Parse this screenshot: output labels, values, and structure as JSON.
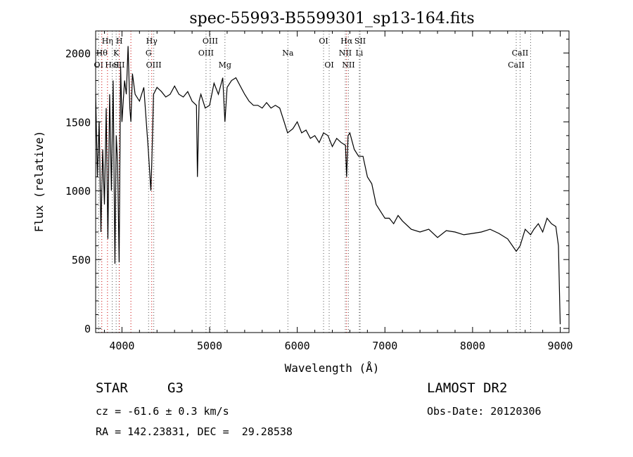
{
  "chart_data": {
    "type": "line",
    "title": "spec-55993-B5599301_sp13-164.fits",
    "xlabel": "Wavelength (Å)",
    "ylabel": "Flux (relative)",
    "xlim": [
      3700,
      9100
    ],
    "ylim": [
      -30,
      2160
    ],
    "xticks": [
      4000,
      5000,
      6000,
      7000,
      8000,
      9000
    ],
    "yticks": [
      0,
      500,
      1000,
      1500,
      2000
    ],
    "grid": false,
    "series": [
      {
        "x": [
          3700,
          3720,
          3740,
          3760,
          3780,
          3800,
          3820,
          3840,
          3860,
          3880,
          3900,
          3920,
          3935,
          3950,
          3968,
          3985,
          4000,
          4030,
          4050,
          4070,
          4090,
          4102,
          4120,
          4150,
          4200,
          4250,
          4300,
          4330,
          4340,
          4360,
          4400,
          4450,
          4500,
          4550,
          4600,
          4650,
          4700,
          4750,
          4800,
          4850,
          4861,
          4880,
          4900,
          4950,
          5000,
          5050,
          5100,
          5150,
          5175,
          5200,
          5250,
          5300,
          5350,
          5400,
          5450,
          5500,
          5550,
          5600,
          5650,
          5700,
          5750,
          5800,
          5850,
          5890,
          5950,
          6000,
          6050,
          6100,
          6150,
          6200,
          6250,
          6300,
          6350,
          6400,
          6450,
          6500,
          6550,
          6563,
          6580,
          6600,
          6650,
          6700,
          6750,
          6800,
          6850,
          6900,
          6950,
          7000,
          7050,
          7100,
          7150,
          7200,
          7300,
          7400,
          7500,
          7600,
          7700,
          7800,
          7900,
          8000,
          8100,
          8200,
          8300,
          8400,
          8498,
          8542,
          8600,
          8662,
          8700,
          8750,
          8800,
          8850,
          8900,
          8950,
          8980,
          9000
        ],
        "values": [
          1700,
          1100,
          1500,
          700,
          1300,
          900,
          1600,
          650,
          1700,
          1000,
          1800,
          470,
          1400,
          1200,
          480,
          1900,
          1500,
          1800,
          1700,
          2050,
          1600,
          1500,
          1850,
          1700,
          1650,
          1750,
          1300,
          1000,
          1200,
          1700,
          1750,
          1720,
          1680,
          1700,
          1760,
          1700,
          1680,
          1720,
          1650,
          1620,
          1100,
          1650,
          1700,
          1600,
          1620,
          1780,
          1700,
          1820,
          1500,
          1750,
          1800,
          1820,
          1760,
          1700,
          1650,
          1620,
          1620,
          1600,
          1640,
          1600,
          1620,
          1600,
          1500,
          1420,
          1450,
          1500,
          1420,
          1440,
          1380,
          1400,
          1350,
          1420,
          1400,
          1320,
          1380,
          1350,
          1330,
          1100,
          1400,
          1420,
          1300,
          1250,
          1250,
          1100,
          1050,
          900,
          850,
          800,
          800,
          760,
          820,
          780,
          720,
          700,
          720,
          660,
          710,
          700,
          680,
          690,
          700,
          720,
          690,
          650,
          560,
          600,
          720,
          680,
          720,
          760,
          700,
          800,
          760,
          740,
          600,
          30
        ]
      }
    ],
    "lines": [
      {
        "x": 3734,
        "label": "OI",
        "row": 3
      },
      {
        "x": 3770,
        "label": "Hθ",
        "row": 2
      },
      {
        "x": 3835,
        "label": "Hη",
        "row": 1
      },
      {
        "x": 3889,
        "label": "HeI",
        "row": 3
      },
      {
        "x": 3934,
        "label": "K",
        "row": 2
      },
      {
        "x": 3968,
        "label": "SII",
        "row": 3
      },
      {
        "x": 3970,
        "label": "H",
        "row": 1
      },
      {
        "x": 4102,
        "label": "",
        "row": 0
      },
      {
        "x": 4304,
        "label": "G",
        "row": 2
      },
      {
        "x": 4340,
        "label": "Hγ",
        "row": 1
      },
      {
        "x": 4363,
        "label": "OIII",
        "row": 3
      },
      {
        "x": 4959,
        "label": "OIII",
        "row": 2
      },
      {
        "x": 5007,
        "label": "OIII",
        "row": 1
      },
      {
        "x": 5175,
        "label": "Mg",
        "row": 3
      },
      {
        "x": 5893,
        "label": "Na",
        "row": 2
      },
      {
        "x": 6300,
        "label": "OI",
        "row": 1
      },
      {
        "x": 6364,
        "label": "OI",
        "row": 3
      },
      {
        "x": 6548,
        "label": "NII",
        "row": 2
      },
      {
        "x": 6563,
        "label": "Hα",
        "row": 1
      },
      {
        "x": 6584,
        "label": "NII",
        "row": 3
      },
      {
        "x": 6717,
        "label": "SII",
        "row": 1
      },
      {
        "x": 6708,
        "label": "Li",
        "row": 2
      },
      {
        "x": 8498,
        "label": "CaII",
        "row": 3
      },
      {
        "x": 8542,
        "label": "CaII",
        "row": 2
      },
      {
        "x": 8662,
        "label": "",
        "row": 0
      }
    ],
    "line_colors": {
      "balmer": "#cc0000",
      "other": "#555555"
    }
  },
  "info": {
    "object_type": "STAR",
    "subclass": "G3",
    "survey": "LAMOST DR2",
    "redshift": "cz = -61.6 ± 0.3 km/s",
    "obs_date": "Obs-Date: 20120306",
    "coords": "RA = 142.23831, DEC =  29.28538"
  }
}
